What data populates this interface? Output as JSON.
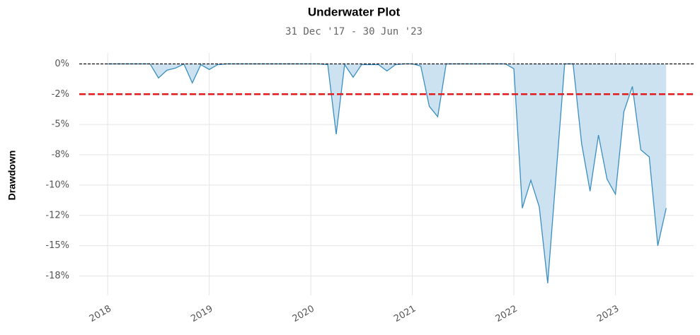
{
  "chart_data": {
    "type": "area",
    "title": "Underwater Plot",
    "subtitle": "31 Dec '17 - 30 Jun '23",
    "ylabel": "Drawdown",
    "x": [
      2018,
      2018.083,
      2018.167,
      2018.25,
      2018.333,
      2018.417,
      2018.5,
      2018.583,
      2018.667,
      2018.75,
      2018.833,
      2018.917,
      2019,
      2019.083,
      2019.167,
      2019.25,
      2019.333,
      2019.417,
      2019.5,
      2019.583,
      2019.667,
      2019.75,
      2019.833,
      2019.917,
      2020,
      2020.083,
      2020.167,
      2020.25,
      2020.333,
      2020.417,
      2020.5,
      2020.583,
      2020.667,
      2020.75,
      2020.833,
      2020.917,
      2021,
      2021.083,
      2021.167,
      2021.25,
      2021.333,
      2021.417,
      2021.5,
      2021.583,
      2021.667,
      2021.75,
      2021.833,
      2021.917,
      2022,
      2022.083,
      2022.167,
      2022.25,
      2022.333,
      2022.417,
      2022.5,
      2022.583,
      2022.667,
      2022.75,
      2022.833,
      2022.917,
      2023,
      2023.083,
      2023.167,
      2023.25,
      2023.333,
      2023.417,
      2023.5
    ],
    "series": [
      {
        "name": "Drawdown",
        "color": "#3a8fc0",
        "fill": "#cde2f0",
        "values": [
          0,
          0,
          0,
          0,
          0,
          0,
          -1.16,
          -0.52,
          -0.35,
          0,
          -1.57,
          -0.06,
          -0.46,
          -0.06,
          0,
          0,
          0,
          0,
          0,
          0,
          0,
          0,
          0,
          0,
          0,
          0,
          -0.06,
          -5.8,
          -0.06,
          -1.1,
          -0.06,
          -0.06,
          -0.06,
          -0.58,
          -0.06,
          0,
          0,
          -0.17,
          -3.5,
          -4.36,
          0,
          0,
          0,
          0,
          0,
          0,
          0,
          0,
          -0.4,
          -11.9,
          -9.6,
          -11.8,
          -18.1,
          -9,
          0,
          0,
          -6.57,
          -10.5,
          -5.87,
          -9.5,
          -10.75,
          -3.95,
          -1.86,
          -7.09,
          -7.67,
          -15,
          -11.9
        ]
      }
    ],
    "hline": -2.5,
    "hline_color": "#e31a1c",
    "xlim": [
      2017.72,
      2023.77
    ],
    "xticks": [
      2018,
      2019,
      2020,
      2021,
      2022,
      2023
    ],
    "ylim": [
      -19.1,
      0.9
    ],
    "yticks": [
      {
        "value": 0,
        "label": "0%"
      },
      {
        "value": -2.5,
        "label": "-2%"
      },
      {
        "value": -5,
        "label": "-5%"
      },
      {
        "value": -7.5,
        "label": "-8%"
      },
      {
        "value": -10,
        "label": "-10%"
      },
      {
        "value": -12.5,
        "label": "-12%"
      },
      {
        "value": -15,
        "label": "-15%"
      },
      {
        "value": -17.5,
        "label": "-18%"
      }
    ],
    "grid": true
  }
}
